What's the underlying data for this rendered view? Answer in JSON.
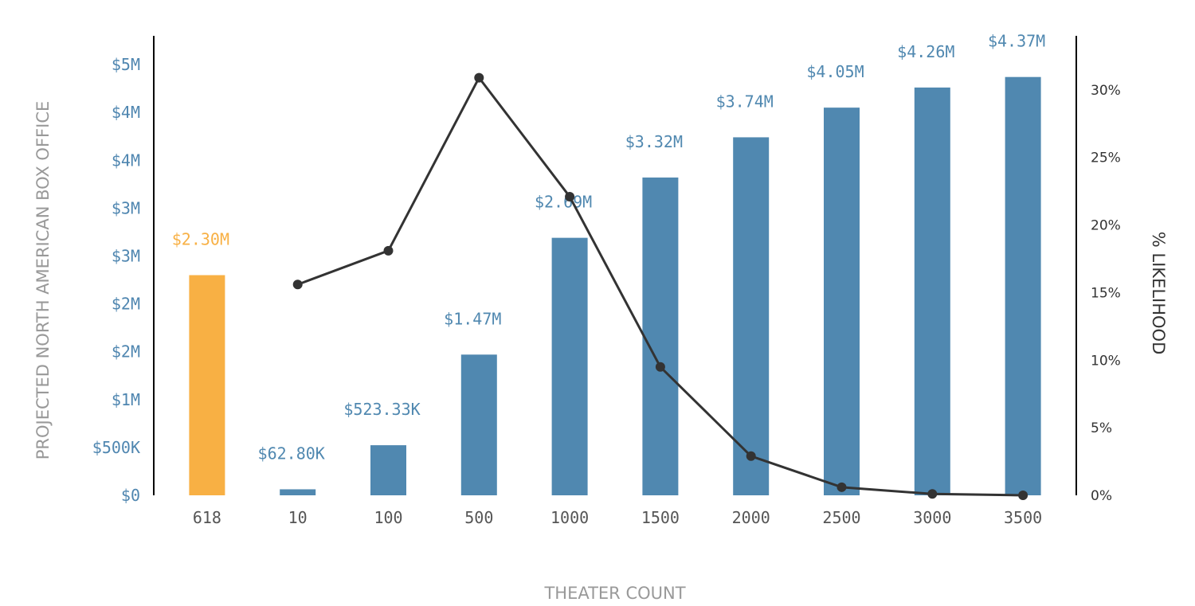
{
  "chart_data": {
    "type": "bar",
    "title": "",
    "xlabel": "THEATER COUNT",
    "ylabel": "PROJECTED NORTH AMERICAN BOX OFFICE",
    "y2label": "% LIKELIHOOD",
    "categories": [
      "618",
      "10",
      "100",
      "500",
      "1000",
      "1500",
      "2000",
      "2500",
      "3000",
      "3500"
    ],
    "bar_values": [
      2300000,
      62800,
      523330,
      1470000,
      2690000,
      3320000,
      3740000,
      4050000,
      4260000,
      4370000
    ],
    "bar_labels": [
      "$2.30M",
      "$62.80K",
      "$523.33K",
      "$1.47M",
      "$2.69M",
      "$3.32M",
      "$3.74M",
      "$4.05M",
      "$4.26M",
      "$4.37M"
    ],
    "highlight_index": 0,
    "line_values": [
      null,
      15.6,
      18.1,
      30.9,
      22.1,
      9.5,
      2.9,
      0.6,
      0.1,
      0.0
    ],
    "ylim": [
      0,
      4800000
    ],
    "y_ticks": [
      0,
      500000,
      1000000,
      1500000,
      2000000,
      2500000,
      3000000,
      3500000,
      4000000,
      4500000
    ],
    "y_tick_labels": [
      "$0",
      "$500K",
      "$1M",
      "$2M",
      "$2M",
      "$3M",
      "$3M",
      "$4M",
      "$4M",
      "$5M"
    ],
    "y2lim": [
      0,
      34
    ],
    "y2_ticks": [
      0,
      5,
      10,
      15,
      20,
      25,
      30
    ],
    "y2_tick_labels": [
      "0%",
      "5%",
      "10%",
      "15%",
      "20%",
      "25%",
      "30%"
    ],
    "colors": {
      "bar": "#5088b0",
      "highlight": "#f8b044",
      "line": "#333333",
      "left_ticks": "#4f86b0",
      "axis_title": "#999999"
    },
    "grid": false
  }
}
